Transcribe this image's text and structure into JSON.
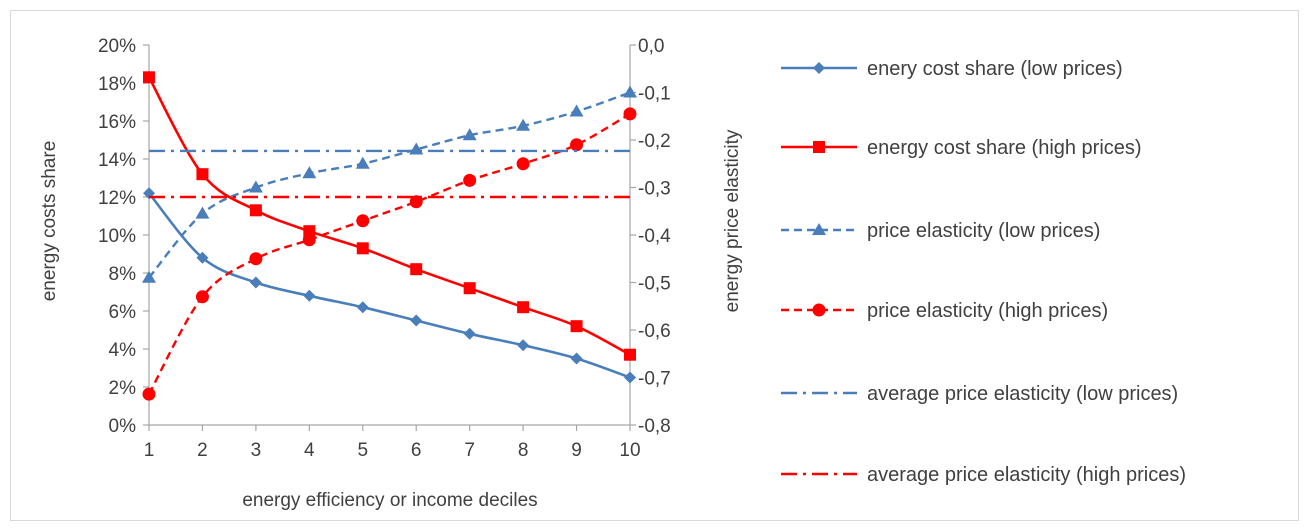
{
  "chart_data": {
    "type": "line",
    "title": "",
    "xlabel": "energy efficiency or income deciles",
    "ylabel_left": "energy costs share",
    "ylabel_right": "energy price elasticity",
    "x": [
      1,
      2,
      3,
      4,
      5,
      6,
      7,
      8,
      9,
      10
    ],
    "x_tick_labels": [
      "1",
      "2",
      "3",
      "4",
      "5",
      "6",
      "7",
      "8",
      "9",
      "10"
    ],
    "ylim_left": [
      0,
      0.2
    ],
    "y_ticks_left": [
      "0%",
      "2%",
      "4%",
      "6%",
      "8%",
      "10%",
      "12%",
      "14%",
      "16%",
      "18%",
      "20%"
    ],
    "ylim_right": [
      -0.8,
      0.0
    ],
    "y_ticks_right": [
      "-0,8",
      "-0,7",
      "-0,6",
      "-0,5",
      "-0,4",
      "-0,3",
      "-0,2",
      "-0,1",
      "0,0"
    ],
    "grid": false,
    "legend_position": "right",
    "series": [
      {
        "name": "enery cost share (low prices)",
        "axis": "left",
        "color": "#4a7ebb",
        "style": "solid",
        "marker": "diamond",
        "values": [
          0.122,
          0.088,
          0.075,
          0.068,
          0.062,
          0.055,
          0.048,
          0.042,
          0.035,
          0.025
        ]
      },
      {
        "name": "energy cost share (high prices)",
        "axis": "left",
        "color": "#ff0000",
        "style": "solid",
        "marker": "square",
        "values": [
          0.183,
          0.132,
          0.113,
          0.102,
          0.093,
          0.082,
          0.072,
          0.062,
          0.052,
          0.037
        ]
      },
      {
        "name": "price elasticity (low prices)",
        "axis": "right",
        "color": "#4a7ebb",
        "style": "dashed",
        "marker": "triangle",
        "values": [
          -0.49,
          -0.355,
          -0.3,
          -0.27,
          -0.25,
          -0.22,
          -0.19,
          -0.17,
          -0.14,
          -0.1
        ]
      },
      {
        "name": "price elasticity (high prices)",
        "axis": "right",
        "color": "#ff0000",
        "style": "dashed",
        "marker": "circle",
        "values": [
          -0.735,
          -0.53,
          -0.45,
          -0.41,
          -0.37,
          -0.33,
          -0.285,
          -0.25,
          -0.21,
          -0.145
        ]
      },
      {
        "name": "average price elasticity (low prices)",
        "axis": "right",
        "color": "#4a7ebb",
        "style": "dashdot",
        "marker": "none",
        "values": [
          -0.223,
          -0.223,
          -0.223,
          -0.223,
          -0.223,
          -0.223,
          -0.223,
          -0.223,
          -0.223,
          -0.223
        ]
      },
      {
        "name": "average price elasticity (high prices)",
        "axis": "right",
        "color": "#ff0000",
        "style": "dashdot",
        "marker": "none",
        "values": [
          -0.32,
          -0.32,
          -0.32,
          -0.32,
          -0.32,
          -0.32,
          -0.32,
          -0.32,
          -0.32,
          -0.32
        ]
      }
    ]
  }
}
